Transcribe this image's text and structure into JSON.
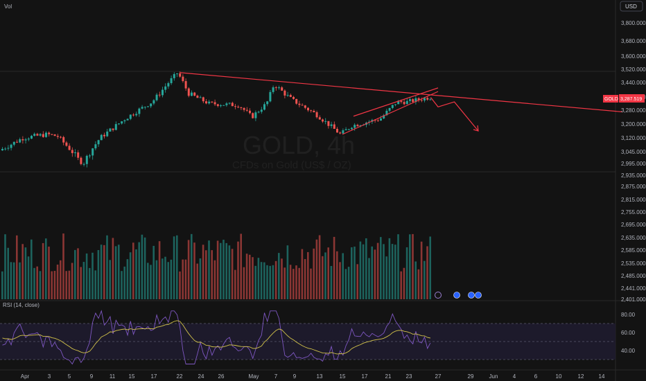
{
  "header": {
    "vol_label": "Vol",
    "currency_button": "USD"
  },
  "watermark": {
    "symbol": "GOLD, 4h",
    "description": "CFDs on Gold (US$ / OZ)"
  },
  "price_tag": {
    "symbol": "GOLD",
    "value": "3,287.519"
  },
  "rsi_label": "RSI (14, close)",
  "colors": {
    "background": "#131313",
    "up": "#26a69a",
    "down": "#ef5350",
    "trendline": "#f23645",
    "rsi_line": "#7e57c2",
    "rsi_ma": "#d4c44a",
    "rsi_band": "#1d1a2b"
  },
  "chart_data": [
    {
      "type": "candlestick",
      "x_ticks": [
        "Apr",
        "3",
        "5",
        "9",
        "11",
        "15",
        "17",
        "22",
        "24",
        "26",
        "May",
        "7",
        "9",
        "13",
        "15",
        "17",
        "21",
        "23",
        "27",
        "29",
        "Jun",
        "4",
        "6",
        "10",
        "12",
        "14"
      ],
      "y_ticks": [
        "3,800.000",
        "3,680.000",
        "3,600.000",
        "3,520.000",
        "3,440.000",
        "3,360.000",
        "3,280.000",
        "3,200.000",
        "3,120.000",
        "3,045.000",
        "2,995.000",
        "2,935.000",
        "2,875.000",
        "2,815.000",
        "2,755.000",
        "2,695.000",
        "2,635.000",
        "2,585.000",
        "2,535.000",
        "2,485.000",
        "2,441.000",
        "2,401.000"
      ],
      "anchors": [
        {
          "date": "Apr 1",
          "price": 3120
        },
        {
          "date": "Apr 3",
          "price": 3140
        },
        {
          "date": "Apr 4",
          "price": 3130
        },
        {
          "date": "Apr 7",
          "price": 3010
        },
        {
          "date": "Apr 8",
          "price": 3000
        },
        {
          "date": "Apr 10",
          "price": 3120
        },
        {
          "date": "Apr 14",
          "price": 3230
        },
        {
          "date": "Apr 17",
          "price": 3330
        },
        {
          "date": "Apr 22",
          "price": 3500
        },
        {
          "date": "Apr 23",
          "price": 3380
        },
        {
          "date": "Apr 25",
          "price": 3320
        },
        {
          "date": "Apr 29",
          "price": 3310
        },
        {
          "date": "May 1",
          "price": 3240
        },
        {
          "date": "May 5",
          "price": 3320
        },
        {
          "date": "May 7",
          "price": 3430
        },
        {
          "date": "May 9",
          "price": 3340
        },
        {
          "date": "May 13",
          "price": 3250
        },
        {
          "date": "May 15",
          "price": 3140
        },
        {
          "date": "May 16",
          "price": 3190
        },
        {
          "date": "May 20",
          "price": 3230
        },
        {
          "date": "May 22",
          "price": 3330
        },
        {
          "date": "May 23",
          "price": 3330
        },
        {
          "date": "May 26",
          "price": 3357
        }
      ],
      "last_price": 3287.519,
      "drawings": [
        {
          "kind": "trendline",
          "from": {
            "date": "Apr 22",
            "price": 3500
          },
          "to": {
            "date": "Jun 16",
            "price": 3270
          }
        },
        {
          "kind": "channel-upper",
          "from": {
            "date": "May 16",
            "price": 3245
          },
          "to": {
            "date": "May 27",
            "price": 3410
          }
        },
        {
          "kind": "channel-lower",
          "from": {
            "date": "May 15",
            "price": 3140
          },
          "to": {
            "date": "May 27",
            "price": 3390
          }
        },
        {
          "kind": "projection-arrow",
          "points": [
            {
              "date": "May 26",
              "price": 3357
            },
            {
              "date": "May 27",
              "price": 3300
            },
            {
              "date": "May 28",
              "price": 3330
            },
            {
              "date": "May 30",
              "price": 3160
            }
          ]
        }
      ]
    },
    {
      "type": "bar",
      "name": "Vol",
      "description_hidden": true,
      "values_relative": "volume bars colored by candle direction"
    },
    {
      "type": "line",
      "name": "RSI (14, close)",
      "y_ticks": [
        "80.00",
        "60.00",
        "40.00"
      ],
      "levels": [
        70,
        50,
        30
      ],
      "ylim": [
        20,
        90
      ]
    }
  ]
}
